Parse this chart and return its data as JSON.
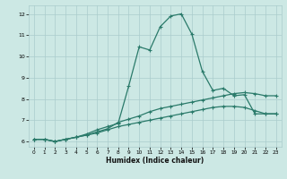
{
  "title": "",
  "xlabel": "Humidex (Indice chaleur)",
  "x": [
    0,
    1,
    2,
    3,
    4,
    5,
    6,
    7,
    8,
    9,
    10,
    11,
    12,
    13,
    14,
    15,
    16,
    17,
    18,
    19,
    20,
    21,
    22,
    23
  ],
  "line1": [
    6.1,
    6.1,
    6.0,
    6.1,
    6.2,
    6.35,
    6.55,
    6.7,
    6.85,
    8.6,
    10.45,
    10.3,
    11.4,
    11.9,
    12.0,
    11.05,
    9.3,
    8.4,
    8.5,
    8.15,
    8.2,
    7.3,
    7.3,
    7.3
  ],
  "line2": [
    6.1,
    6.1,
    6.0,
    6.1,
    6.2,
    6.3,
    6.45,
    6.6,
    6.9,
    7.05,
    7.2,
    7.4,
    7.55,
    7.65,
    7.75,
    7.85,
    7.95,
    8.05,
    8.15,
    8.25,
    8.3,
    8.25,
    8.15,
    8.15
  ],
  "line3": [
    6.1,
    6.1,
    6.0,
    6.1,
    6.2,
    6.3,
    6.4,
    6.55,
    6.7,
    6.8,
    6.9,
    7.0,
    7.1,
    7.2,
    7.3,
    7.4,
    7.5,
    7.6,
    7.65,
    7.65,
    7.6,
    7.45,
    7.3,
    7.3
  ],
  "line_color": "#2a7a6a",
  "bg_color": "#cce8e4",
  "grid_color": "#aacccc",
  "ylim": [
    5.75,
    12.4
  ],
  "xlim": [
    -0.5,
    23.5
  ],
  "yticks": [
    6,
    7,
    8,
    9,
    10,
    11,
    12
  ],
  "xticks": [
    0,
    1,
    2,
    3,
    4,
    5,
    6,
    7,
    8,
    9,
    10,
    11,
    12,
    13,
    14,
    15,
    16,
    17,
    18,
    19,
    20,
    21,
    22,
    23
  ]
}
